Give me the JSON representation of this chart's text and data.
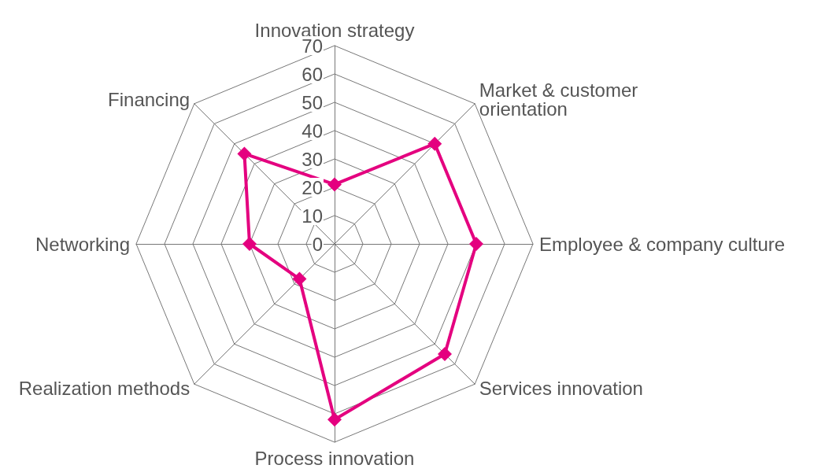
{
  "chart_data": {
    "type": "radar",
    "categories": [
      "Innovation strategy",
      "Market & customer\norientation",
      "Employee & company culture",
      "Services innovation",
      "Process innovation",
      "Realization methods",
      "Networking",
      "Financing"
    ],
    "series": [
      {
        "color": "#e4007f",
        "values": [
          21,
          50,
          50,
          55,
          62,
          17.5,
          30,
          45
        ]
      }
    ],
    "ylim": [
      0,
      70
    ],
    "yticks": [
      0,
      10,
      20,
      30,
      40,
      50,
      60,
      70
    ],
    "marker": "diamond",
    "line_style": "solid",
    "grid": true
  }
}
